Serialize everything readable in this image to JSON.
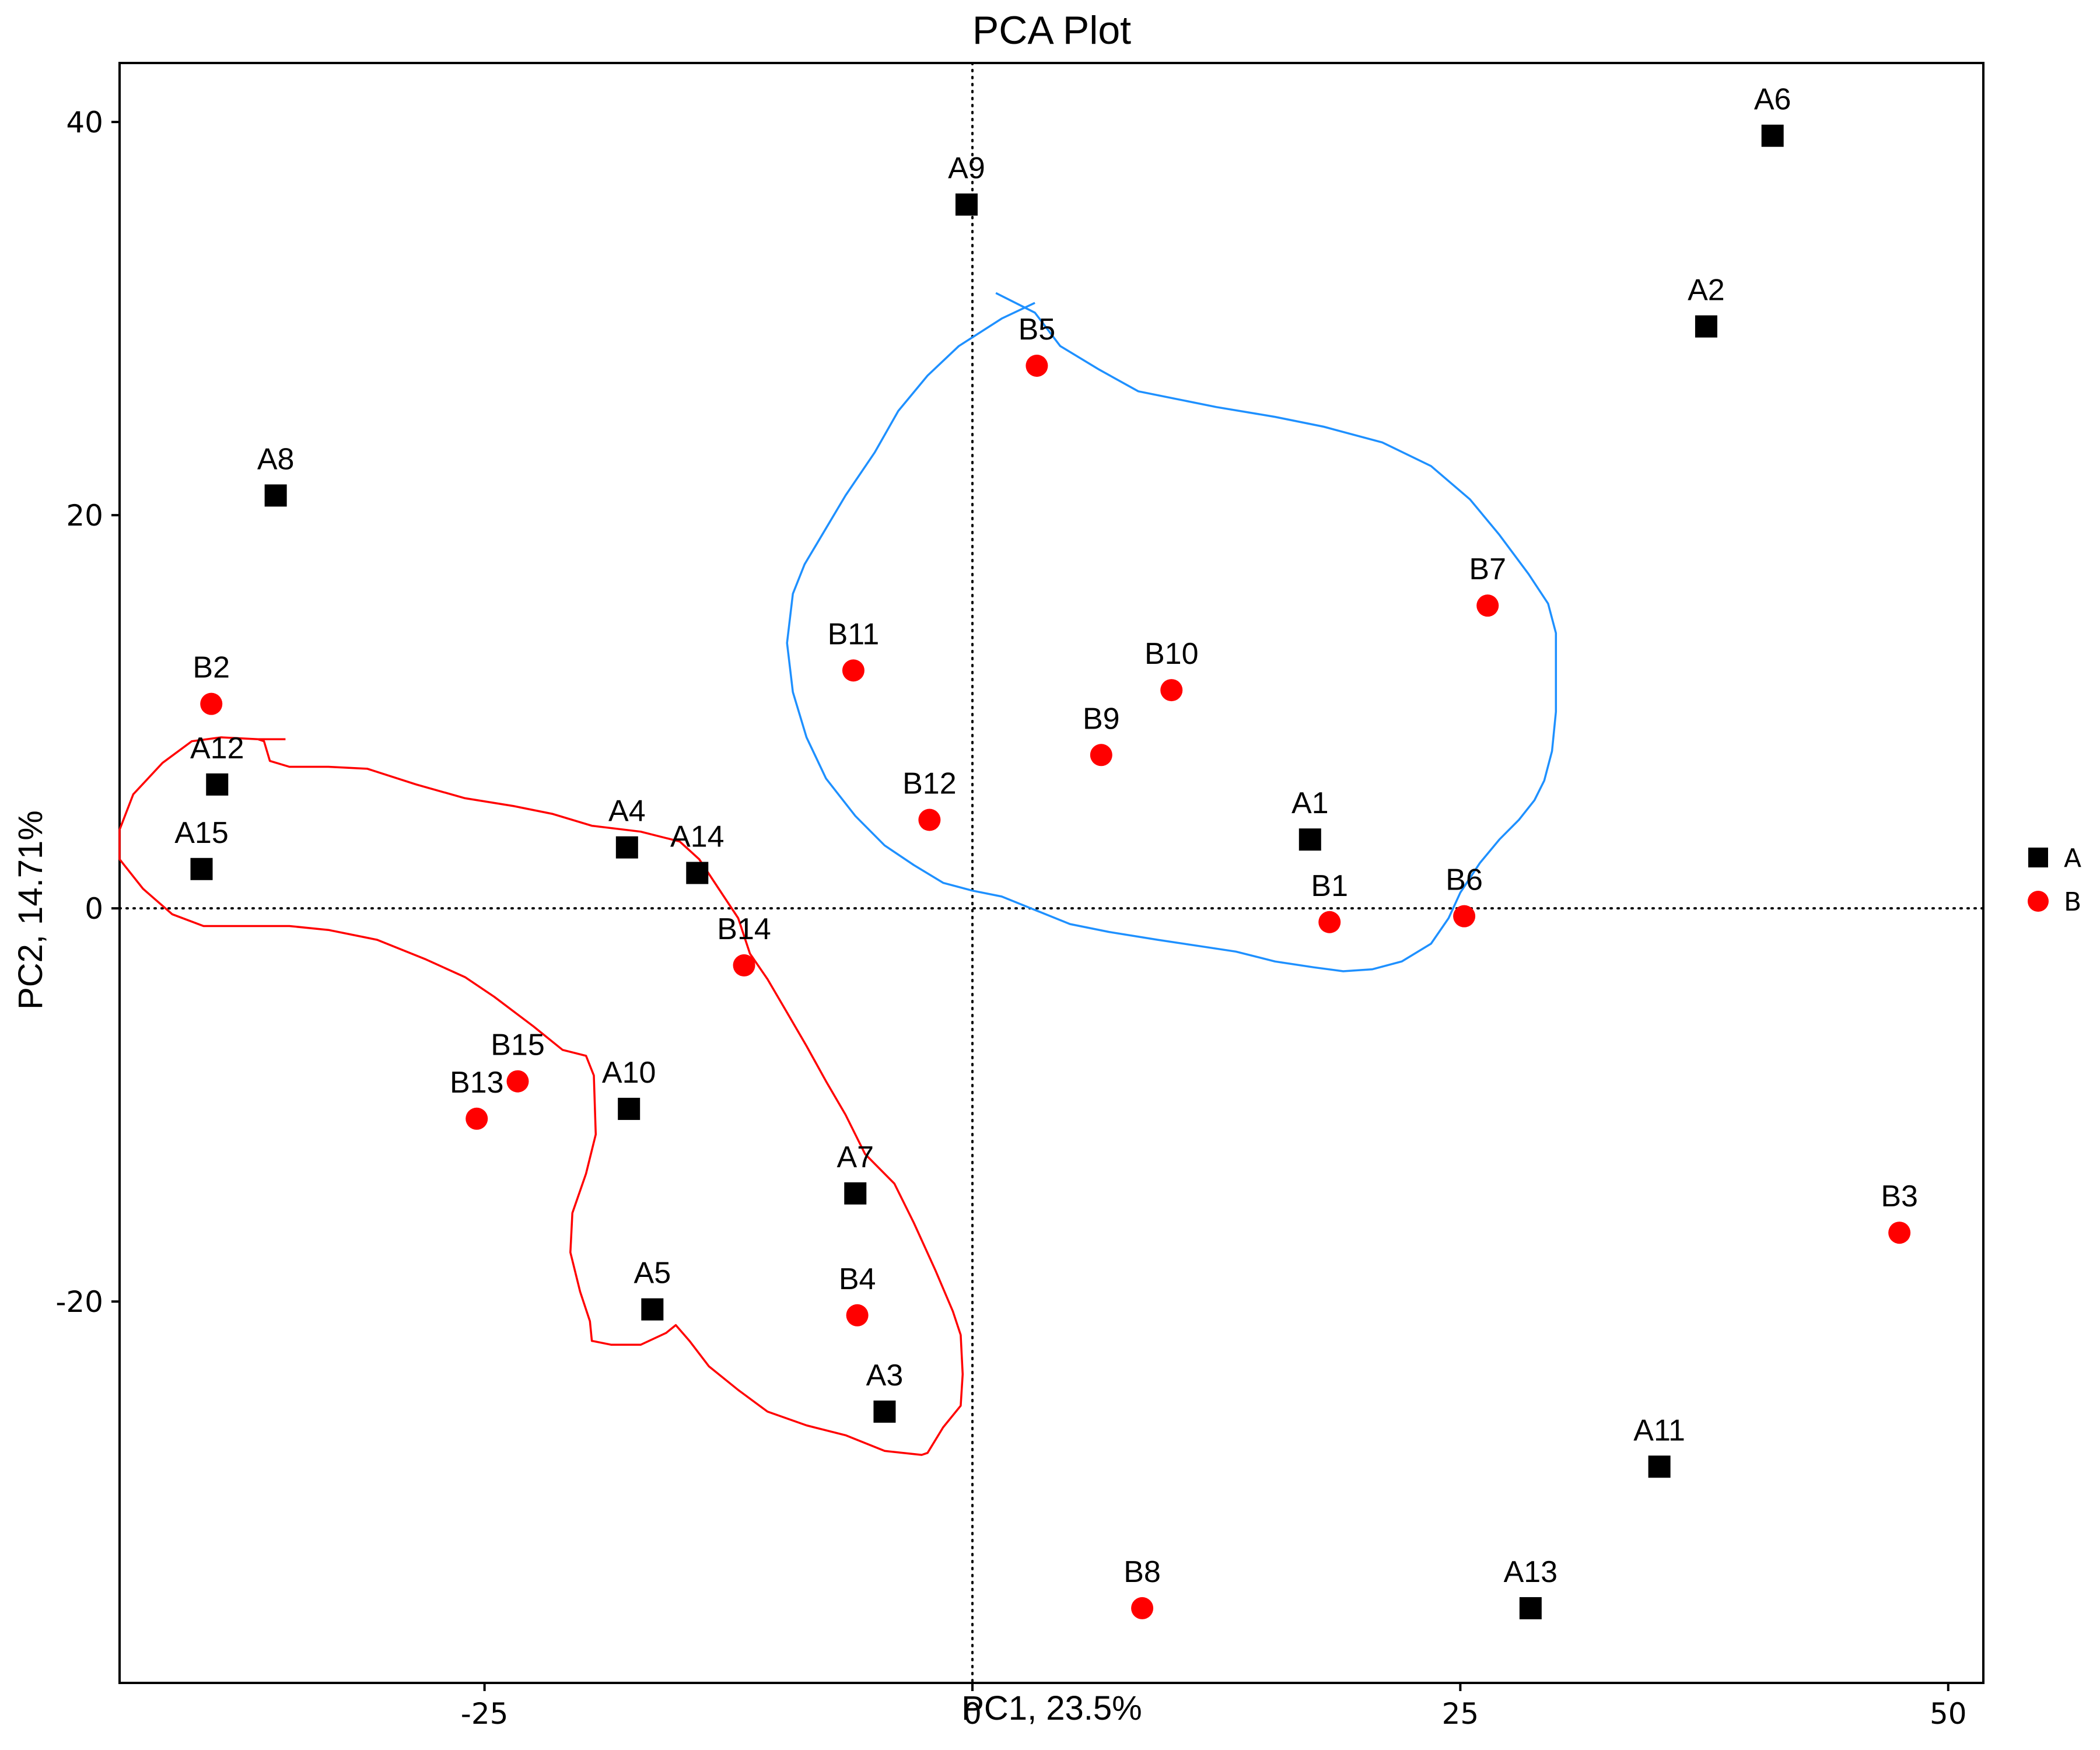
{
  "chart_data": {
    "type": "scatter",
    "title": "PCA Plot",
    "xlabel": "PC1, 23.5%",
    "ylabel": "PC2, 14.71%",
    "xlim": [
      -43.7,
      51.8
    ],
    "ylim": [
      -39.4,
      43.0
    ],
    "xticks": [
      -25,
      0,
      25,
      50
    ],
    "yticks": [
      -20,
      0,
      20,
      40
    ],
    "xtick_labels": [
      "-25",
      "0",
      "25",
      "50"
    ],
    "ytick_labels": [
      "-20",
      "0",
      "20",
      "40"
    ],
    "reference_lines": {
      "x": 0,
      "y": 0,
      "style": "dotted"
    },
    "legend": {
      "position": "right",
      "entries": [
        {
          "name": "A",
          "marker": "square",
          "color": "#000000"
        },
        {
          "name": "B",
          "marker": "circle",
          "color": "#ff0000"
        }
      ]
    },
    "series": [
      {
        "name": "A",
        "marker": "square",
        "color": "#000000",
        "points": [
          {
            "label": "A1",
            "x": 17.3,
            "y": 3.5
          },
          {
            "label": "A2",
            "x": 37.6,
            "y": 29.6
          },
          {
            "label": "A3",
            "x": -4.5,
            "y": -25.6
          },
          {
            "label": "A4",
            "x": -17.7,
            "y": 3.1
          },
          {
            "label": "A5",
            "x": -16.4,
            "y": -20.4
          },
          {
            "label": "A6",
            "x": 41.0,
            "y": 39.3
          },
          {
            "label": "A7",
            "x": -6.0,
            "y": -14.5
          },
          {
            "label": "A8",
            "x": -35.7,
            "y": 21.0
          },
          {
            "label": "A9",
            "x": -0.3,
            "y": 35.8
          },
          {
            "label": "A10",
            "x": -17.6,
            "y": -10.2
          },
          {
            "label": "A11",
            "x": 35.2,
            "y": -28.4
          },
          {
            "label": "A12",
            "x": -38.7,
            "y": 6.3
          },
          {
            "label": "A13",
            "x": 28.6,
            "y": -35.6
          },
          {
            "label": "A14",
            "x": -14.1,
            "y": 1.8
          },
          {
            "label": "A15",
            "x": -39.5,
            "y": 2.0
          }
        ]
      },
      {
        "name": "B",
        "marker": "circle",
        "color": "#ff0000",
        "points": [
          {
            "label": "B1",
            "x": 18.3,
            "y": -0.7
          },
          {
            "label": "B2",
            "x": -39.0,
            "y": 10.4
          },
          {
            "label": "B3",
            "x": 47.5,
            "y": -16.5
          },
          {
            "label": "B4",
            "x": -5.9,
            "y": -20.7
          },
          {
            "label": "B5",
            "x": 3.3,
            "y": 27.6
          },
          {
            "label": "B6",
            "x": 25.2,
            "y": -0.4
          },
          {
            "label": "B7",
            "x": 26.4,
            "y": 15.4
          },
          {
            "label": "B8",
            "x": 8.7,
            "y": -35.6
          },
          {
            "label": "B9",
            "x": 6.6,
            "y": 7.8
          },
          {
            "label": "B10",
            "x": 10.2,
            "y": 11.1
          },
          {
            "label": "B11",
            "x": -6.1,
            "y": 12.1
          },
          {
            "label": "B12",
            "x": -2.2,
            "y": 4.5
          },
          {
            "label": "B13",
            "x": -25.4,
            "y": -10.7
          },
          {
            "label": "B14",
            "x": -11.7,
            "y": -2.9
          },
          {
            "label": "B15",
            "x": -23.3,
            "y": -8.8
          }
        ]
      }
    ],
    "contours": [
      {
        "name": "blue-contour",
        "color": "#1e90ff",
        "points": [
          [
            1.2,
            31.3
          ],
          [
            3.2,
            30.3
          ],
          [
            4.5,
            28.6
          ],
          [
            6.5,
            27.4
          ],
          [
            8.5,
            26.3
          ],
          [
            10.5,
            25.9
          ],
          [
            12.5,
            25.5
          ],
          [
            15.5,
            25.0
          ],
          [
            18.0,
            24.5
          ],
          [
            21.0,
            23.7
          ],
          [
            23.5,
            22.5
          ],
          [
            25.5,
            20.8
          ],
          [
            27.0,
            19.0
          ],
          [
            28.5,
            17.0
          ],
          [
            29.5,
            15.5
          ],
          [
            29.9,
            14.0
          ],
          [
            29.9,
            12.0
          ],
          [
            29.9,
            10.0
          ],
          [
            29.7,
            8.0
          ],
          [
            29.3,
            6.5
          ],
          [
            28.8,
            5.5
          ],
          [
            28.0,
            4.5
          ],
          [
            27.0,
            3.5
          ],
          [
            26.0,
            2.3
          ],
          [
            25.0,
            0.8
          ],
          [
            24.4,
            -0.5
          ],
          [
            23.5,
            -1.8
          ],
          [
            22.0,
            -2.7
          ],
          [
            20.5,
            -3.1
          ],
          [
            19.0,
            -3.2
          ],
          [
            17.5,
            -3.0
          ],
          [
            15.5,
            -2.7
          ],
          [
            13.5,
            -2.2
          ],
          [
            11.5,
            -1.9
          ],
          [
            9.5,
            -1.6
          ],
          [
            7.0,
            -1.2
          ],
          [
            5.0,
            -0.8
          ],
          [
            3.5,
            -0.2
          ],
          [
            1.5,
            0.6
          ],
          [
            0.0,
            0.9
          ],
          [
            -1.5,
            1.3
          ],
          [
            -3.0,
            2.2
          ],
          [
            -4.5,
            3.2
          ],
          [
            -6.0,
            4.7
          ],
          [
            -7.5,
            6.6
          ],
          [
            -8.5,
            8.7
          ],
          [
            -9.2,
            11.0
          ],
          [
            -9.5,
            13.5
          ],
          [
            -9.2,
            16.0
          ],
          [
            -8.6,
            17.5
          ],
          [
            -7.7,
            19.0
          ],
          [
            -6.5,
            21.0
          ],
          [
            -5.0,
            23.2
          ],
          [
            -3.8,
            25.3
          ],
          [
            -2.3,
            27.1
          ],
          [
            -0.7,
            28.6
          ],
          [
            1.5,
            30.0
          ],
          [
            3.2,
            30.8
          ]
        ]
      },
      {
        "name": "red-contour",
        "color": "#ff0000",
        "points": [
          [
            -36.6,
            8.6
          ],
          [
            -38.5,
            8.7
          ],
          [
            -40.0,
            8.5
          ],
          [
            -41.5,
            7.4
          ],
          [
            -43.0,
            5.8
          ],
          [
            -43.7,
            4.0
          ],
          [
            -43.7,
            2.5
          ],
          [
            -42.5,
            1.0
          ],
          [
            -41.0,
            -0.3
          ],
          [
            -39.4,
            -0.9
          ],
          [
            -37.0,
            -0.9
          ],
          [
            -35.0,
            -0.9
          ],
          [
            -33.0,
            -1.1
          ],
          [
            -30.5,
            -1.6
          ],
          [
            -28.0,
            -2.6
          ],
          [
            -26.0,
            -3.5
          ],
          [
            -24.5,
            -4.5
          ],
          [
            -22.5,
            -6.0
          ],
          [
            -21.0,
            -7.2
          ],
          [
            -19.8,
            -7.5
          ],
          [
            -19.4,
            -8.5
          ],
          [
            -19.3,
            -11.5
          ],
          [
            -19.8,
            -13.5
          ],
          [
            -20.5,
            -15.5
          ],
          [
            -20.6,
            -17.5
          ],
          [
            -20.1,
            -19.5
          ],
          [
            -19.6,
            -21.0
          ],
          [
            -19.5,
            -22.0
          ],
          [
            -18.5,
            -22.2
          ],
          [
            -17.0,
            -22.2
          ],
          [
            -15.7,
            -21.6
          ],
          [
            -15.2,
            -21.2
          ],
          [
            -14.5,
            -22.0
          ],
          [
            -13.5,
            -23.3
          ],
          [
            -12.0,
            -24.5
          ],
          [
            -10.5,
            -25.6
          ],
          [
            -8.5,
            -26.3
          ],
          [
            -6.5,
            -26.8
          ],
          [
            -4.5,
            -27.6
          ],
          [
            -2.6,
            -27.8
          ],
          [
            -2.3,
            -27.7
          ],
          [
            -1.5,
            -26.4
          ],
          [
            -0.6,
            -25.3
          ],
          [
            -0.5,
            -23.7
          ],
          [
            -0.6,
            -21.7
          ],
          [
            -1.0,
            -20.5
          ],
          [
            -1.9,
            -18.4
          ],
          [
            -3.0,
            -16.0
          ],
          [
            -4.0,
            -14.0
          ],
          [
            -5.5,
            -12.5
          ],
          [
            -6.5,
            -10.5
          ],
          [
            -7.5,
            -8.8
          ],
          [
            -8.5,
            -7.0
          ],
          [
            -9.5,
            -5.3
          ],
          [
            -10.5,
            -3.6
          ],
          [
            -11.4,
            -2.3
          ],
          [
            -12.0,
            -0.5
          ],
          [
            -13.0,
            1.0
          ],
          [
            -14.0,
            2.5
          ],
          [
            -15.0,
            3.4
          ],
          [
            -17.0,
            3.9
          ],
          [
            -19.5,
            4.2
          ],
          [
            -21.5,
            4.8
          ],
          [
            -23.5,
            5.2
          ],
          [
            -26.0,
            5.6
          ],
          [
            -28.5,
            6.3
          ],
          [
            -31.0,
            7.1
          ],
          [
            -33.0,
            7.2
          ],
          [
            -35.0,
            7.2
          ],
          [
            -36.0,
            7.5
          ],
          [
            -36.3,
            8.5
          ],
          [
            -36.6,
            8.6
          ],
          [
            -35.2,
            8.6
          ]
        ]
      }
    ]
  }
}
